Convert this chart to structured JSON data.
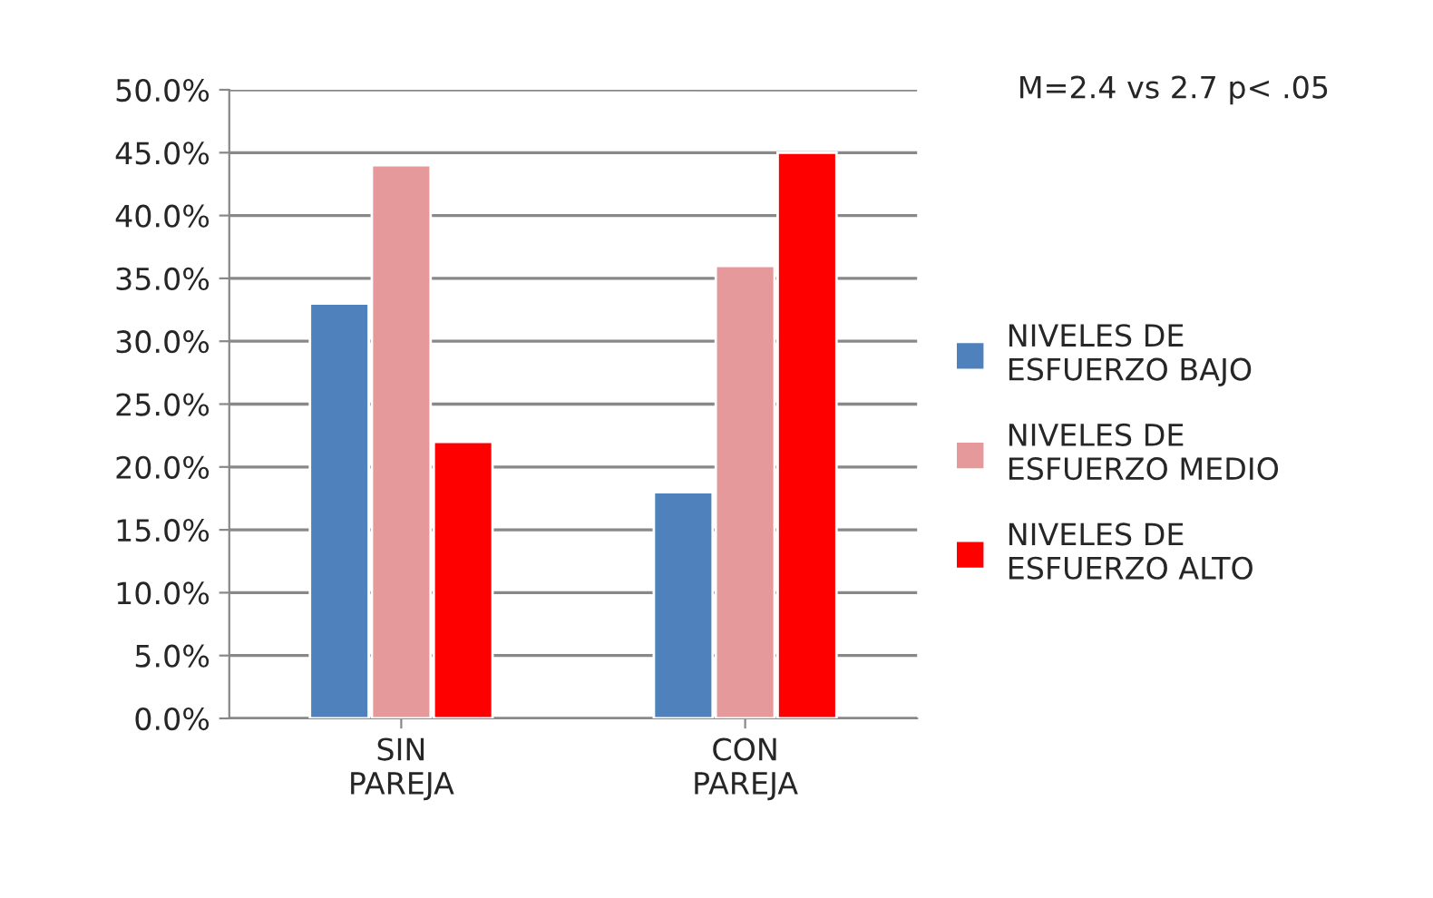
{
  "chart_data": {
    "type": "bar",
    "categories": [
      "SIN\nPAREJA",
      "CON\nPAREJA"
    ],
    "series": [
      {
        "name": "NIVELES DE\nESFUERZO BAJO",
        "color": "#4f81bd",
        "values": [
          33.0,
          18.0
        ]
      },
      {
        "name": "NIVELES DE\nESFUERZO MEDIO",
        "color": "#e6999a",
        "values": [
          44.0,
          36.0
        ]
      },
      {
        "name": "NIVELES DE\nESFUERZO ALTO",
        "color": "#ff0000",
        "values": [
          22.0,
          45.0
        ]
      }
    ],
    "ylim": [
      0,
      50
    ],
    "yticks": [
      {
        "value": 0,
        "label": "0.0%"
      },
      {
        "value": 5,
        "label": "5.0%"
      },
      {
        "value": 10,
        "label": "10.0%"
      },
      {
        "value": 15,
        "label": "15.0%"
      },
      {
        "value": 20,
        "label": "20.0%"
      },
      {
        "value": 25,
        "label": "25.0%"
      },
      {
        "value": 30,
        "label": "30.0%"
      },
      {
        "value": 35,
        "label": "35.0%"
      },
      {
        "value": 40,
        "label": "40.0%"
      },
      {
        "value": 45,
        "label": "45.0%"
      },
      {
        "value": 50,
        "label": "50.0%"
      }
    ],
    "annotations": [
      "M=2.4 vs 2.7 p< .05"
    ],
    "grid": "y",
    "legend": "right"
  }
}
